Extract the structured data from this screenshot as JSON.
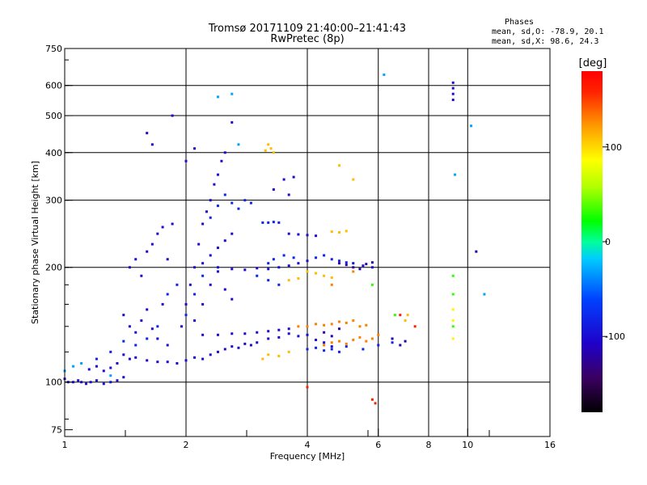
{
  "chart_data": {
    "type": "scatter",
    "title": "Tromsø 20171109 21:40:00–21:41:43",
    "subtitle": "RwPretec (8p)",
    "xlabel": "Frequency [MHz]",
    "ylabel": "Stationary phase Virtual Height [km]",
    "x_scale": "log",
    "y_scale": "log",
    "xlim": [
      1,
      16
    ],
    "ylim": [
      72,
      750
    ],
    "x_ticks": [
      1,
      2,
      4,
      6,
      8,
      10,
      16
    ],
    "x_tick_labels": [
      "1",
      "2",
      "4",
      "6",
      "8",
      "10",
      "16"
    ],
    "y_ticks": [
      75,
      100,
      200,
      300,
      400,
      500,
      600,
      750
    ],
    "y_tick_labels": [
      "75",
      "100",
      "200",
      "300",
      "400",
      "500",
      "600",
      "750"
    ],
    "grid": true,
    "info": {
      "heading": "Phases",
      "line_o": "mean, sd,O:  -78.9, 20.1",
      "line_x": "mean, sd,X:   98.6, 24.3"
    },
    "colorbar": {
      "label": "[deg]",
      "range": [
        -180,
        180
      ],
      "ticks": [
        100,
        0,
        -100
      ],
      "tick_labels": [
        "100",
        "0",
        "-100"
      ]
    },
    "series": [
      {
        "phase": -100,
        "points": [
          [
            1.0,
            102
          ],
          [
            1.02,
            100
          ],
          [
            1.05,
            100
          ],
          [
            1.08,
            101
          ],
          [
            1.1,
            100
          ],
          [
            1.13,
            99
          ],
          [
            1.16,
            100
          ],
          [
            1.2,
            101
          ],
          [
            1.25,
            99
          ],
          [
            1.3,
            100
          ],
          [
            1.35,
            101
          ],
          [
            1.4,
            103
          ],
          [
            1.15,
            108
          ],
          [
            1.2,
            110
          ],
          [
            1.25,
            107
          ],
          [
            1.3,
            109
          ],
          [
            1.35,
            112
          ],
          [
            1.4,
            118
          ],
          [
            1.45,
            115
          ],
          [
            1.5,
            116
          ],
          [
            1.6,
            114
          ],
          [
            1.7,
            113
          ],
          [
            1.8,
            113
          ],
          [
            1.9,
            112
          ],
          [
            2.0,
            114
          ],
          [
            2.1,
            116
          ],
          [
            2.2,
            115
          ],
          [
            2.3,
            118
          ],
          [
            2.4,
            120
          ],
          [
            2.5,
            122
          ],
          [
            2.6,
            124
          ],
          [
            2.7,
            123
          ],
          [
            2.8,
            126
          ],
          [
            2.9,
            125
          ],
          [
            3.0,
            127
          ],
          [
            3.2,
            130
          ],
          [
            3.4,
            131
          ],
          [
            3.6,
            134
          ],
          [
            3.8,
            132
          ],
          [
            4.0,
            133
          ],
          [
            4.2,
            129
          ],
          [
            4.4,
            127
          ],
          [
            4.6,
            124
          ],
          [
            1.4,
            150
          ],
          [
            1.45,
            140
          ],
          [
            1.5,
            135
          ],
          [
            1.55,
            145
          ],
          [
            1.6,
            155
          ],
          [
            1.65,
            138
          ],
          [
            1.7,
            130
          ],
          [
            1.75,
            160
          ],
          [
            1.8,
            125
          ],
          [
            1.45,
            200
          ],
          [
            1.5,
            210
          ],
          [
            1.55,
            190
          ],
          [
            1.6,
            220
          ],
          [
            1.65,
            230
          ],
          [
            1.7,
            245
          ],
          [
            1.75,
            255
          ],
          [
            1.8,
            210
          ],
          [
            1.85,
            260
          ],
          [
            1.95,
            140
          ],
          [
            2.0,
            160
          ],
          [
            2.05,
            180
          ],
          [
            2.1,
            200
          ],
          [
            2.15,
            230
          ],
          [
            2.2,
            260
          ],
          [
            2.25,
            280
          ],
          [
            2.3,
            300
          ],
          [
            2.35,
            330
          ],
          [
            2.4,
            350
          ],
          [
            2.45,
            380
          ],
          [
            2.5,
            400
          ],
          [
            2.2,
            205
          ],
          [
            2.3,
            215
          ],
          [
            2.4,
            225
          ],
          [
            2.5,
            235
          ],
          [
            2.6,
            245
          ],
          [
            2.4,
            200
          ],
          [
            2.6,
            198
          ],
          [
            2.8,
            197
          ],
          [
            3.0,
            199
          ],
          [
            3.2,
            198
          ],
          [
            3.4,
            200
          ],
          [
            3.6,
            202
          ],
          [
            3.8,
            205
          ],
          [
            4.0,
            208
          ],
          [
            2.1,
            145
          ],
          [
            2.2,
            160
          ],
          [
            2.3,
            180
          ],
          [
            2.4,
            195
          ],
          [
            2.5,
            175
          ],
          [
            2.6,
            165
          ],
          [
            1.6,
            450
          ],
          [
            1.65,
            420
          ],
          [
            1.85,
            500
          ],
          [
            2.0,
            380
          ],
          [
            2.1,
            410
          ],
          [
            2.6,
            480
          ],
          [
            3.3,
            320
          ],
          [
            3.5,
            340
          ],
          [
            3.6,
            310
          ],
          [
            3.7,
            345
          ],
          [
            2.2,
            133
          ],
          [
            2.4,
            133
          ],
          [
            2.6,
            134
          ],
          [
            2.8,
            134
          ],
          [
            3.0,
            135
          ],
          [
            3.2,
            136
          ],
          [
            3.4,
            137
          ],
          [
            3.6,
            138
          ],
          [
            5.2,
            205
          ],
          [
            5.5,
            202
          ],
          [
            5.8,
            200
          ],
          [
            3.6,
            245
          ],
          [
            3.8,
            244
          ],
          [
            4.0,
            243
          ],
          [
            4.2,
            242
          ],
          [
            9.2,
            610
          ],
          [
            9.2,
            590
          ],
          [
            9.2,
            570
          ],
          [
            9.2,
            550
          ]
        ]
      },
      {
        "phase": -80,
        "points": [
          [
            1.2,
            115
          ],
          [
            1.3,
            120
          ],
          [
            1.4,
            128
          ],
          [
            1.5,
            125
          ],
          [
            1.6,
            130
          ],
          [
            1.7,
            140
          ],
          [
            1.8,
            170
          ],
          [
            1.9,
            180
          ],
          [
            2.0,
            150
          ],
          [
            2.1,
            170
          ],
          [
            2.2,
            190
          ],
          [
            2.3,
            270
          ],
          [
            2.4,
            290
          ],
          [
            2.5,
            310
          ],
          [
            2.6,
            295
          ],
          [
            2.7,
            285
          ],
          [
            2.8,
            300
          ],
          [
            2.9,
            295
          ],
          [
            3.1,
            262
          ],
          [
            3.2,
            262
          ],
          [
            3.3,
            263
          ],
          [
            3.4,
            262
          ],
          [
            3.2,
            205
          ],
          [
            3.3,
            210
          ],
          [
            3.5,
            215
          ],
          [
            3.7,
            212
          ],
          [
            4.2,
            212
          ],
          [
            4.4,
            215
          ],
          [
            4.6,
            210
          ],
          [
            4.8,
            208
          ],
          [
            5.0,
            206
          ],
          [
            4.0,
            122
          ],
          [
            4.2,
            123
          ],
          [
            4.4,
            121
          ],
          [
            4.6,
            122
          ],
          [
            4.8,
            120
          ],
          [
            5.0,
            124
          ],
          [
            5.5,
            122
          ],
          [
            6.0,
            125
          ],
          [
            6.5,
            127
          ],
          [
            3.0,
            190
          ],
          [
            3.2,
            185
          ],
          [
            3.4,
            180
          ]
        ]
      },
      {
        "phase": -120,
        "points": [
          [
            4.8,
            205
          ],
          [
            5.0,
            203
          ],
          [
            5.2,
            200
          ],
          [
            5.4,
            198
          ],
          [
            5.6,
            204
          ],
          [
            5.8,
            206
          ],
          [
            4.4,
            135
          ],
          [
            4.6,
            132
          ],
          [
            4.8,
            138
          ],
          [
            6.5,
            130
          ],
          [
            6.8,
            125
          ],
          [
            7.0,
            128
          ],
          [
            10.5,
            220
          ]
        ]
      },
      {
        "phase": -30,
        "points": [
          [
            1.0,
            107
          ],
          [
            1.05,
            110
          ],
          [
            1.1,
            112
          ],
          [
            1.3,
            104
          ],
          [
            2.4,
            560
          ],
          [
            2.6,
            570
          ],
          [
            2.7,
            420
          ],
          [
            9.3,
            350
          ],
          [
            10.2,
            470
          ],
          [
            11.0,
            170
          ],
          [
            6.2,
            640
          ]
        ]
      },
      {
        "phase": 110,
        "points": [
          [
            3.2,
            420
          ],
          [
            3.25,
            410
          ],
          [
            3.3,
            400
          ],
          [
            3.15,
            405
          ],
          [
            4.8,
            370
          ],
          [
            5.2,
            340
          ],
          [
            4.0,
            195
          ],
          [
            4.2,
            193
          ],
          [
            4.4,
            190
          ],
          [
            4.6,
            188
          ],
          [
            3.8,
            187
          ],
          [
            3.6,
            185
          ],
          [
            4.6,
            248
          ],
          [
            4.8,
            247
          ],
          [
            5.0,
            249
          ],
          [
            3.2,
            118
          ],
          [
            3.4,
            117
          ],
          [
            3.1,
            115
          ],
          [
            3.6,
            120
          ],
          [
            7.0,
            145
          ],
          [
            7.1,
            150
          ]
        ]
      },
      {
        "phase": 130,
        "points": [
          [
            3.8,
            140
          ],
          [
            4.0,
            140
          ],
          [
            4.2,
            142
          ],
          [
            4.4,
            141
          ],
          [
            4.6,
            142
          ],
          [
            4.8,
            144
          ],
          [
            5.0,
            143
          ],
          [
            5.2,
            145
          ],
          [
            5.4,
            140
          ],
          [
            5.6,
            141
          ],
          [
            4.4,
            125
          ],
          [
            4.6,
            127
          ],
          [
            4.8,
            128
          ],
          [
            5.0,
            126
          ],
          [
            5.2,
            129
          ],
          [
            5.4,
            131
          ],
          [
            5.6,
            128
          ],
          [
            5.8,
            130
          ],
          [
            6.0,
            133
          ],
          [
            5.2,
            195
          ],
          [
            4.6,
            180
          ]
        ]
      },
      {
        "phase": 160,
        "points": [
          [
            4.0,
            97
          ],
          [
            5.8,
            90
          ],
          [
            5.9,
            88
          ],
          [
            6.8,
            150
          ],
          [
            7.4,
            140
          ]
        ]
      },
      {
        "phase": 30,
        "points": [
          [
            5.8,
            180
          ],
          [
            6.6,
            150
          ],
          [
            9.2,
            140
          ],
          [
            9.2,
            170
          ],
          [
            9.2,
            190
          ]
        ]
      },
      {
        "phase": 90,
        "points": [
          [
            9.2,
            130
          ],
          [
            9.2,
            145
          ],
          [
            9.2,
            155
          ]
        ]
      }
    ]
  }
}
